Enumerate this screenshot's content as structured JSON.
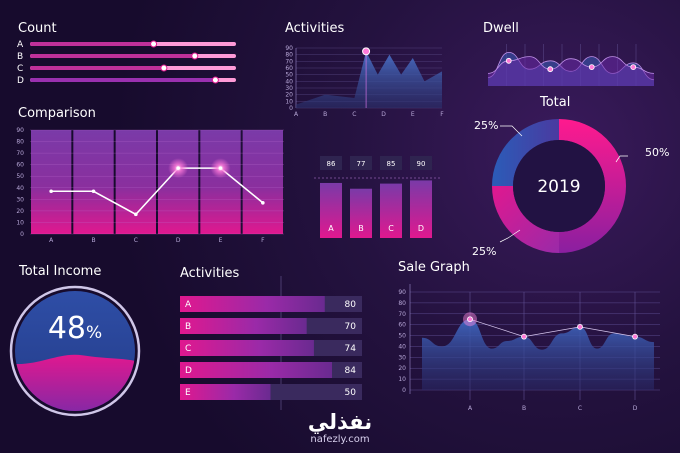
{
  "titles": {
    "count": "Count",
    "activities_top": "Activities",
    "dwell": "Dwell",
    "comparison": "Comparison",
    "total": "Total",
    "total_income": "Total Income",
    "activities_bottom": "Activities",
    "sale_graph": "Sale Graph"
  },
  "watermark": {
    "arabic": "نفذلي",
    "latin": "nafezly.com"
  },
  "colors": {
    "bg": "#1b0f35",
    "pink": "#e0188f",
    "blue": "#2d4da3",
    "purple": "#7a3aa8"
  },
  "chart_data": [
    {
      "id": "count",
      "type": "bar",
      "orientation": "horizontal",
      "title": "Count",
      "categories": [
        "A",
        "B",
        "C",
        "D"
      ],
      "values": [
        0.6,
        0.8,
        0.65,
        0.9
      ],
      "xlim": [
        0,
        1
      ]
    },
    {
      "id": "activities_top",
      "type": "area",
      "title": "Activities",
      "categories": [
        "A",
        "B",
        "C",
        "D",
        "E",
        "F"
      ],
      "x": [
        0,
        1,
        2,
        2.4,
        2.8,
        3.2,
        3.6,
        4,
        4.4,
        5
      ],
      "y": [
        5,
        20,
        15,
        85,
        50,
        80,
        50,
        75,
        40,
        55
      ],
      "yticks": [
        0,
        10,
        20,
        30,
        40,
        50,
        60,
        70,
        80,
        90
      ],
      "ylim": [
        0,
        90
      ],
      "highlight_x": 2.4
    },
    {
      "id": "dwell",
      "type": "area",
      "title": "Dwell",
      "series": [
        {
          "values": [
            20,
            80,
            40,
            60,
            35,
            70,
            30,
            55,
            15
          ]
        },
        {
          "values": [
            30,
            60,
            70,
            40,
            65,
            45,
            70,
            45,
            30
          ]
        }
      ],
      "points_on_series": 1
    },
    {
      "id": "comparison",
      "type": "line",
      "title": "Comparison",
      "categories": [
        "A",
        "B",
        "C",
        "D",
        "E",
        "F"
      ],
      "values": [
        37,
        37,
        17,
        57,
        57,
        27
      ],
      "yticks": [
        0,
        10,
        20,
        30,
        40,
        50,
        60,
        70,
        80,
        90
      ],
      "ylim": [
        0,
        90
      ]
    },
    {
      "id": "small_bars",
      "type": "bar",
      "categories": [
        "A",
        "B",
        "C",
        "D"
      ],
      "values": [
        86,
        77,
        85,
        90
      ]
    },
    {
      "id": "total",
      "type": "pie",
      "title": "Total",
      "center_label": "2019",
      "slices": [
        {
          "label": "50%",
          "value": 50
        },
        {
          "label": "25%",
          "value": 25
        },
        {
          "label": "25%",
          "value": 25
        }
      ]
    },
    {
      "id": "total_income",
      "type": "gauge",
      "title": "Total Income",
      "value": 48,
      "value_text": "48",
      "unit": "%"
    },
    {
      "id": "activities_bottom",
      "type": "bar",
      "orientation": "horizontal",
      "title": "Activities",
      "categories": [
        "A",
        "B",
        "C",
        "D",
        "E"
      ],
      "values": [
        80,
        70,
        74,
        84,
        50
      ],
      "value_labels": [
        "80",
        "70",
        "74",
        "84",
        "50"
      ]
    },
    {
      "id": "sale_graph",
      "type": "area",
      "title": "Sale Graph",
      "categories": [
        "A",
        "B",
        "C",
        "D"
      ],
      "points": [
        65,
        49,
        58,
        49
      ],
      "yticks": [
        0,
        10,
        20,
        30,
        40,
        50,
        60,
        70,
        80,
        90
      ],
      "ylim": [
        0,
        90
      ]
    }
  ]
}
